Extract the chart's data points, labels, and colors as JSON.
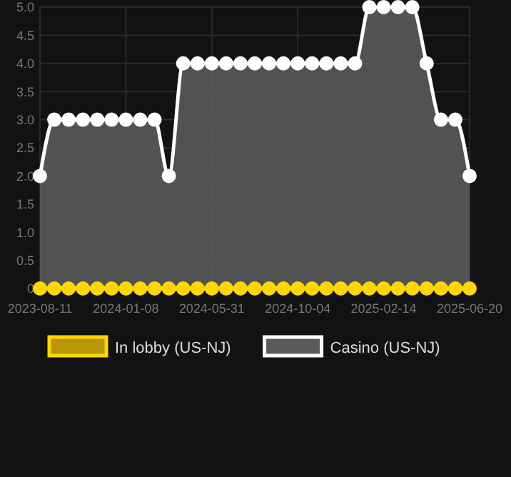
{
  "chart_data": {
    "type": "area",
    "categories": [
      "2023-08-11",
      null,
      null,
      null,
      null,
      null,
      "2024-01-08",
      null,
      null,
      null,
      null,
      null,
      "2024-05-31",
      null,
      null,
      null,
      null,
      null,
      "2024-10-04",
      null,
      null,
      null,
      null,
      null,
      "2025-02-14",
      null,
      null,
      null,
      null,
      null,
      "2025-06-20"
    ],
    "series": [
      {
        "name": "In lobby (US-NJ)",
        "type": "line",
        "color": "#ffd700",
        "values": [
          0,
          0,
          0,
          0,
          0,
          0,
          0,
          0,
          0,
          0,
          0,
          0,
          0,
          0,
          0,
          0,
          0,
          0,
          0,
          0,
          0,
          0,
          0,
          0,
          0,
          0,
          0,
          0,
          0,
          0,
          0
        ]
      },
      {
        "name": "Casino (US-NJ)",
        "color": "#ffffff",
        "values": [
          2,
          3,
          3,
          3,
          3,
          3,
          3,
          3,
          3,
          2,
          4,
          4,
          4,
          4,
          4,
          4,
          4,
          4,
          4,
          4,
          4,
          4,
          4,
          5,
          5,
          5,
          5,
          4,
          3,
          3,
          2
        ]
      }
    ],
    "ylim": [
      0,
      5
    ],
    "yticks": [
      0,
      {
        "value": 0.5,
        "label": "0.5"
      },
      {
        "value": 1,
        "label": "1.0"
      },
      {
        "value": 1.5,
        "label": "1.5"
      },
      {
        "value": 2,
        "label": "2.0"
      },
      {
        "value": 2.5,
        "label": "2.5"
      },
      {
        "value": 3,
        "label": "3.0"
      },
      {
        "value": 3.5,
        "label": "3.5"
      },
      {
        "value": 4,
        "label": "4.0"
      },
      {
        "value": 4.5,
        "label": "4.5"
      },
      {
        "value": 5,
        "label": "5.0"
      }
    ],
    "grid": true,
    "legend": "bottom",
    "marker": "circle"
  }
}
